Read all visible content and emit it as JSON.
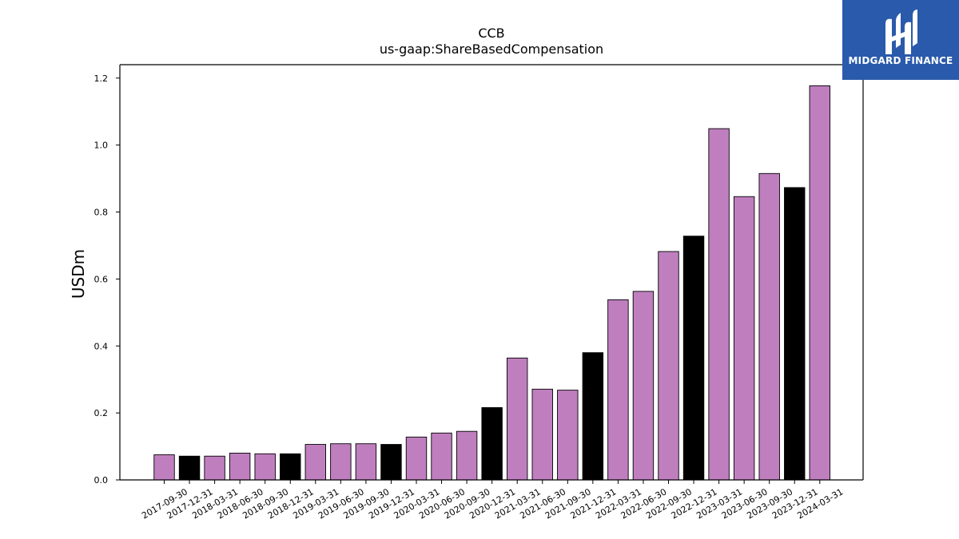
{
  "header": {
    "title": "CCB",
    "subtitle": "us-gaap:ShareBasedCompensation"
  },
  "logo": {
    "text": "MIDGARD FINANCE",
    "background": "#2a5aab"
  },
  "colors": {
    "bar_purple": "#bf7fbf",
    "bar_black": "#000000"
  },
  "chart_data": {
    "type": "bar",
    "title": "CCB",
    "subtitle": "us-gaap:ShareBasedCompensation",
    "xlabel": "",
    "ylabel": "USDm",
    "ylim": [
      0,
      1.24
    ],
    "yticks": [
      0.0,
      0.2,
      0.4,
      0.6,
      0.8,
      1.0,
      1.2
    ],
    "ytick_labels": [
      "0.0",
      "0.2",
      "0.4",
      "0.6",
      "0.8",
      "1.0",
      "1.2"
    ],
    "categories": [
      "2017-09-30",
      "2017-12-31",
      "2018-03-31",
      "2018-06-30",
      "2018-09-30",
      "2018-12-31",
      "2019-03-31",
      "2019-06-30",
      "2019-09-30",
      "2019-12-31",
      "2020-03-31",
      "2020-06-30",
      "2020-09-30",
      "2020-12-31",
      "2021-03-31",
      "2021-06-30",
      "2021-09-30",
      "2021-12-31",
      "2022-03-31",
      "2022-06-30",
      "2022-09-30",
      "2022-12-31",
      "2023-03-31",
      "2023-06-30",
      "2023-09-30",
      "2023-12-31",
      "2024-03-31"
    ],
    "values": [
      0.075,
      0.071,
      0.071,
      0.08,
      0.078,
      0.078,
      0.106,
      0.108,
      0.108,
      0.106,
      0.128,
      0.14,
      0.145,
      0.216,
      0.364,
      0.271,
      0.268,
      0.38,
      0.538,
      0.563,
      0.682,
      0.728,
      1.049,
      0.846,
      0.915,
      0.873,
      1.177
    ],
    "highlight": [
      "purple",
      "black",
      "purple",
      "purple",
      "purple",
      "black",
      "purple",
      "purple",
      "purple",
      "black",
      "purple",
      "purple",
      "purple",
      "black",
      "purple",
      "purple",
      "purple",
      "black",
      "purple",
      "purple",
      "purple",
      "black",
      "purple",
      "purple",
      "purple",
      "black",
      "purple"
    ],
    "grid": false,
    "legend": "none"
  }
}
